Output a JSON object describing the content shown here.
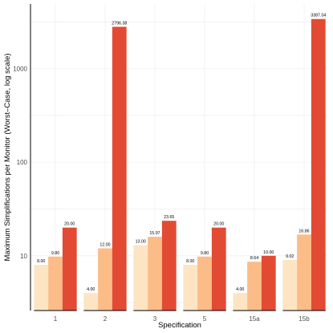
{
  "chart_data": {
    "type": "bar",
    "xlabel": "Specification",
    "ylabel": "Maximum Simplifications per Monitor (Worst–Case, log scale)",
    "y_scale": "log",
    "ylim": [
      2.6,
      4900
    ],
    "grid": true,
    "legend": "none",
    "categories": [
      "1",
      "2",
      "3",
      "5",
      "15a",
      "15b"
    ],
    "y_ticks": [
      10,
      100,
      1000
    ],
    "y_tick_labels": [
      "10",
      "100",
      "1000"
    ],
    "series": [
      {
        "color": "#fde5c4",
        "values": [
          8.0,
          4.0,
          13.0,
          8.0,
          4.0,
          9.02
        ],
        "labels": [
          "8.00",
          "4.00",
          "13.00",
          "8.00",
          "4.00",
          "9.02"
        ]
      },
      {
        "color": "#fbbc88",
        "values": [
          9.8,
          12.0,
          15.97,
          9.8,
          8.64,
          16.86
        ],
        "labels": [
          "9.80",
          "12.00",
          "15.97",
          "9.80",
          "8.64",
          "16.86"
        ]
      },
      {
        "color": "#e34a33",
        "values": [
          20.0,
          2796.38,
          23.65,
          20.0,
          10.0,
          3387.04
        ],
        "labels": [
          "20.00",
          "2796.38",
          "23.65",
          "20.00",
          "10.00",
          "3387.04"
        ]
      }
    ]
  }
}
